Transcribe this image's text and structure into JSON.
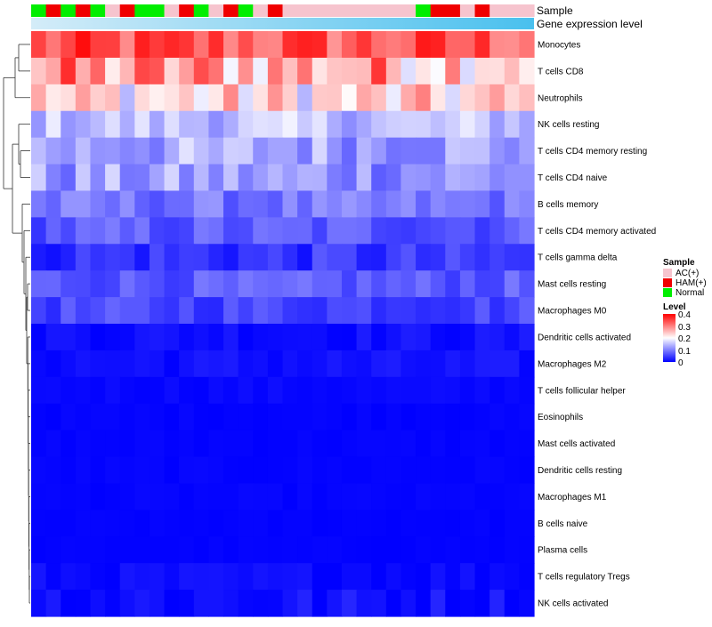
{
  "chart_data": {
    "type": "heatmap",
    "annotation_tracks": [
      {
        "label": "Sample"
      },
      {
        "label": "Gene expression level"
      }
    ],
    "legend_sample": {
      "title": "Sample",
      "items": [
        {
          "label": "AC(+)",
          "color": "#F6C4CE"
        },
        {
          "label": "HAM(+)",
          "color": "#F00000"
        },
        {
          "label": "Normal",
          "color": "#00EE00"
        }
      ]
    },
    "legend_level": {
      "title": "Level",
      "ticks": [
        "0.4",
        "0.3",
        "0.2",
        "0.1",
        "0"
      ],
      "range": [
        0,
        0.4
      ],
      "colors": {
        "low": "#0000FF",
        "mid": "#FFFFFF",
        "high": "#FF0000"
      }
    },
    "colors": {
      "ac": "#F6C4CE",
      "ham": "#F00000",
      "normal": "#00EE00",
      "expr_track_start": "#D4ECF8",
      "expr_track_end": "#49C0EE"
    },
    "sample_groups": [
      "N",
      "H",
      "N",
      "H",
      "N",
      "A",
      "H",
      "N",
      "N",
      "A",
      "H",
      "N",
      "A",
      "H",
      "N",
      "A",
      "H",
      "A",
      "A",
      "A",
      "A",
      "A",
      "A",
      "A",
      "A",
      "A",
      "N",
      "H",
      "H",
      "A",
      "H",
      "A",
      "A",
      "A"
    ],
    "rows": [
      "Monocytes",
      "T cells CD8",
      "Neutrophils",
      "NK cells resting",
      "T cells CD4 memory resting",
      "T cells CD4 naive",
      "B cells memory",
      "T cells CD4 memory activated",
      "T cells gamma delta",
      "Mast cells resting",
      "Macrophages M0",
      "Dendritic cells activated",
      "Macrophages M2",
      "T cells follicular helper",
      "Eosinophils",
      "Mast cells activated",
      "Dendritic cells resting",
      "Macrophages M1",
      "B cells naive",
      "Plasma cells",
      "T cells regulatory  Tregs",
      "NK cells activated"
    ],
    "row_base": [
      0.33,
      0.27,
      0.22,
      0.15,
      0.13,
      0.12,
      0.09,
      0.07,
      0.04,
      0.07,
      0.055,
      0.012,
      0.012,
      0.006,
      0.003,
      0.003,
      0.003,
      0.003,
      0.002,
      0.002,
      0.008,
      0.012
    ],
    "row_spread": [
      0.06,
      0.1,
      0.08,
      0.04,
      0.05,
      0.05,
      0.03,
      0.03,
      0.03,
      0.025,
      0.025,
      0.012,
      0.012,
      0.005,
      0.003,
      0.003,
      0.003,
      0.003,
      0.002,
      0.002,
      0.01,
      0.02
    ],
    "dendrogram_note": "Rows clustered hierarchically (dendrogram on left)"
  }
}
